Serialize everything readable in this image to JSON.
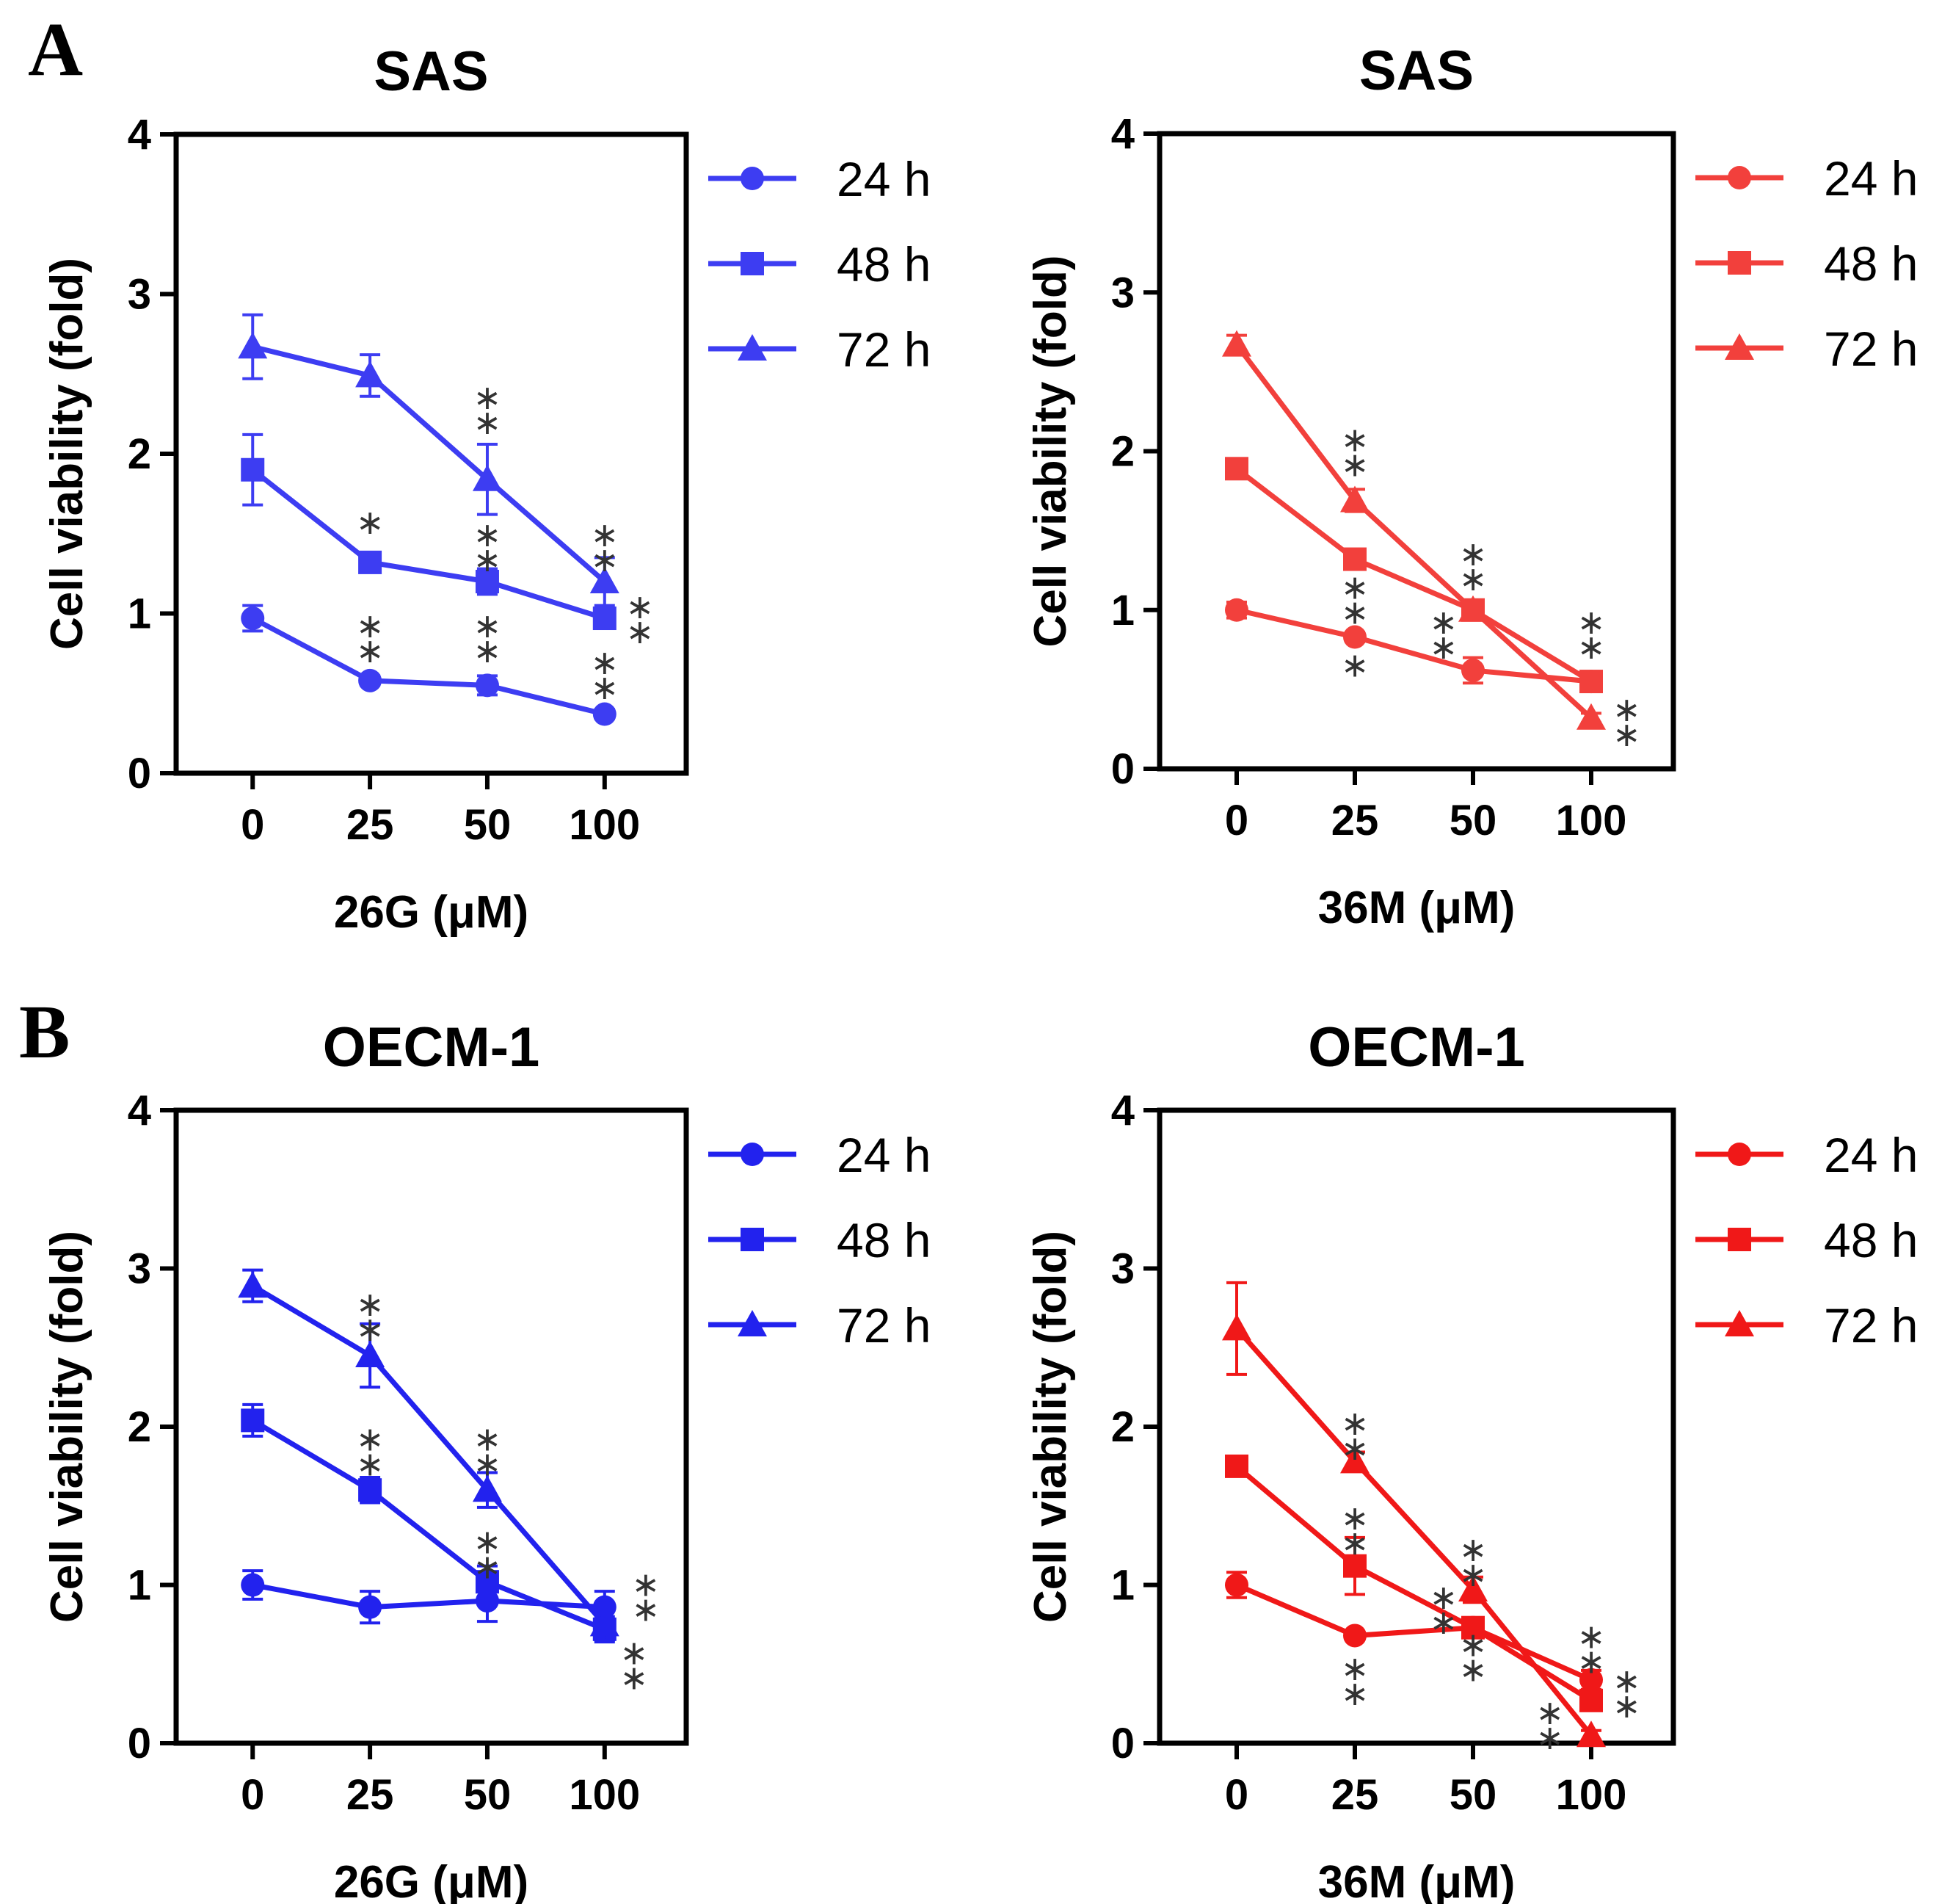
{
  "panel_labels": [
    "A",
    "B"
  ],
  "chart_data": [
    {
      "type": "line",
      "panel": "A",
      "title": "SAS",
      "xlabel": "26G (μM)",
      "ylabel": "Cell viability (fold)",
      "categories": [
        "0",
        "25",
        "50",
        "100"
      ],
      "yticks": [
        "0",
        "1",
        "2",
        "3",
        "4"
      ],
      "ylim": [
        0,
        4
      ],
      "color": "#3d3df2",
      "series": [
        {
          "name": "24 h",
          "marker": "circle",
          "values": [
            0.97,
            0.58,
            0.55,
            0.37
          ],
          "errors": [
            0.08,
            0.03,
            0.06,
            0.03
          ]
        },
        {
          "name": "48 h",
          "marker": "square",
          "values": [
            1.9,
            1.32,
            1.2,
            0.97
          ],
          "errors": [
            0.22,
            0.04,
            0.08,
            0.06
          ]
        },
        {
          "name": "72 h",
          "marker": "triangle",
          "values": [
            2.67,
            2.49,
            1.84,
            1.2
          ],
          "errors": [
            0.2,
            0.13,
            0.22,
            0.15
          ]
        }
      ],
      "annotations": [
        {
          "text": "∗∗",
          "x": 1,
          "y": 0.85
        },
        {
          "text": "∗∗",
          "x": 2,
          "y": 0.85
        },
        {
          "text": "∗∗",
          "x": 3,
          "y": 0.62
        },
        {
          "text": "∗",
          "x": 1,
          "y": 1.5
        },
        {
          "text": "∗∗",
          "x": 2,
          "y": 1.42
        },
        {
          "text": "∗∗",
          "x": 3.3,
          "y": 0.97
        },
        {
          "text": "∗∗",
          "x": 2,
          "y": 2.28
        },
        {
          "text": "∗∗",
          "x": 3,
          "y": 1.42
        }
      ]
    },
    {
      "type": "line",
      "panel": "A",
      "title": "SAS",
      "xlabel": "36M (μM)",
      "ylabel": "Cell viability (fold)",
      "categories": [
        "0",
        "25",
        "50",
        "100"
      ],
      "yticks": [
        "0",
        "1",
        "2",
        "3",
        "4"
      ],
      "ylim": [
        0,
        4
      ],
      "color": "#f2403c",
      "series": [
        {
          "name": "24 h",
          "marker": "circle",
          "values": [
            1.0,
            0.83,
            0.62,
            0.55
          ],
          "errors": [
            0.05,
            0.03,
            0.08,
            0.04
          ]
        },
        {
          "name": "48 h",
          "marker": "square",
          "values": [
            1.89,
            1.32,
            1.0,
            0.55
          ],
          "errors": [
            0.04,
            0.05,
            0.05,
            0.03
          ]
        },
        {
          "name": "72 h",
          "marker": "triangle",
          "values": [
            2.67,
            1.69,
            1.0,
            0.32
          ],
          "errors": [
            0.06,
            0.07,
            0.04,
            0.03
          ]
        }
      ],
      "annotations": [
        {
          "text": "∗∗",
          "x": 1,
          "y": 2.0
        },
        {
          "text": "∗∗",
          "x": 1,
          "y": 1.07
        },
        {
          "text": "∗",
          "x": 1,
          "y": 0.58
        },
        {
          "text": "∗∗",
          "x": 2,
          "y": 1.28
        },
        {
          "text": "∗∗",
          "x": 1.75,
          "y": 0.85
        },
        {
          "text": "∗∗",
          "x": 3,
          "y": 0.85
        },
        {
          "text": "∗∗",
          "x": 3.3,
          "y": 0.3
        }
      ]
    },
    {
      "type": "line",
      "panel": "B",
      "title": "OECM-1",
      "xlabel": "26G (μM)",
      "ylabel": "Cell viability (fold)",
      "categories": [
        "0",
        "25",
        "50",
        "100"
      ],
      "yticks": [
        "0",
        "1",
        "2",
        "3",
        "4"
      ],
      "ylim": [
        0,
        4
      ],
      "color": "#2222ee",
      "series": [
        {
          "name": "24 h",
          "marker": "circle",
          "values": [
            1.0,
            0.86,
            0.9,
            0.86
          ],
          "errors": [
            0.09,
            0.1,
            0.13,
            0.1
          ]
        },
        {
          "name": "48 h",
          "marker": "square",
          "values": [
            2.04,
            1.6,
            1.02,
            0.72
          ],
          "errors": [
            0.1,
            0.08,
            0.1,
            0.08
          ]
        },
        {
          "name": "72 h",
          "marker": "triangle",
          "values": [
            2.89,
            2.45,
            1.6,
            0.75
          ],
          "errors": [
            0.1,
            0.2,
            0.11,
            0.1
          ]
        }
      ],
      "annotations": [
        {
          "text": "∗∗",
          "x": 1,
          "y": 2.7
        },
        {
          "text": "∗∗",
          "x": 1,
          "y": 1.85
        },
        {
          "text": "∗∗",
          "x": 2,
          "y": 1.85
        },
        {
          "text": "∗∗",
          "x": 2,
          "y": 1.2
        },
        {
          "text": "∗∗",
          "x": 3.35,
          "y": 0.93
        },
        {
          "text": "∗∗",
          "x": 3.25,
          "y": 0.5
        }
      ]
    },
    {
      "type": "line",
      "panel": "B",
      "title": "OECM-1",
      "xlabel": "36M (μM)",
      "ylabel": "Cell viability (fold)",
      "categories": [
        "0",
        "25",
        "50",
        "100"
      ],
      "yticks": [
        "0",
        "1",
        "2",
        "3",
        "4"
      ],
      "ylim": [
        0,
        4
      ],
      "color": "#f01818",
      "series": [
        {
          "name": "24 h",
          "marker": "circle",
          "values": [
            1.0,
            0.68,
            0.73,
            0.4
          ],
          "errors": [
            0.08,
            0.02,
            0.03,
            0.06
          ]
        },
        {
          "name": "48 h",
          "marker": "square",
          "values": [
            1.75,
            1.12,
            0.73,
            0.27
          ],
          "errors": [
            0.06,
            0.18,
            0.03,
            0.05
          ]
        },
        {
          "name": "72 h",
          "marker": "triangle",
          "values": [
            2.62,
            1.78,
            0.97,
            0.05
          ],
          "errors": [
            0.29,
            0.06,
            0.08,
            0.03
          ]
        }
      ],
      "annotations": [
        {
          "text": "∗∗",
          "x": 1,
          "y": 1.95
        },
        {
          "text": "∗∗",
          "x": 1,
          "y": 1.35
        },
        {
          "text": "∗∗",
          "x": 1,
          "y": 0.4
        },
        {
          "text": "∗∗",
          "x": 2,
          "y": 1.15
        },
        {
          "text": "∗∗",
          "x": 1.75,
          "y": 0.85
        },
        {
          "text": "∗∗",
          "x": 2,
          "y": 0.55
        },
        {
          "text": "∗∗",
          "x": 2.65,
          "y": 0.12
        },
        {
          "text": "∗∗",
          "x": 3,
          "y": 0.6
        },
        {
          "text": "∗∗",
          "x": 3.3,
          "y": 0.32
        }
      ]
    }
  ]
}
